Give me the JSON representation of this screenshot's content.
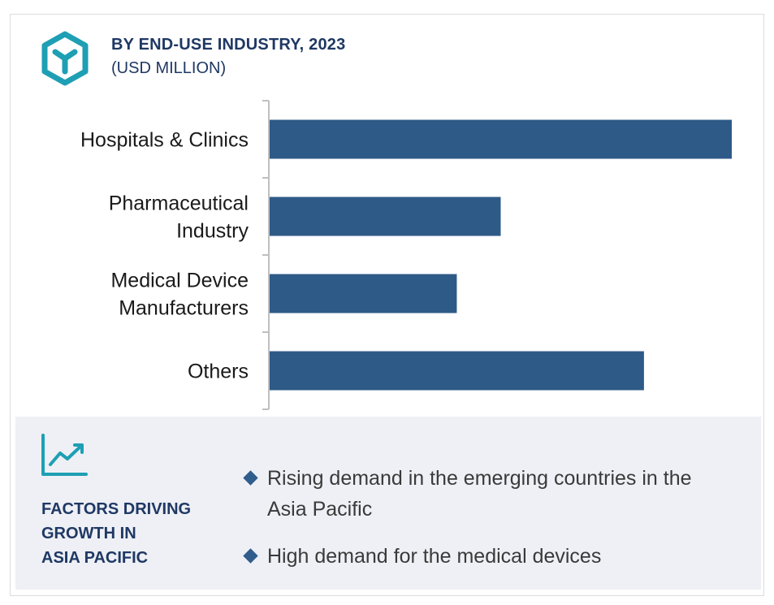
{
  "header": {
    "title": "BY END-USE INDUSTRY, 2023",
    "subtitle": "(USD MILLION)",
    "logo_icon": "hexagon-y-logo-icon"
  },
  "colors": {
    "bar": "#2e5a87",
    "accent": "#1e9fb4",
    "title": "#1f3864",
    "panel_bg": "#eef0f5",
    "axis": "#bfbfbf"
  },
  "chart_data": {
    "type": "bar",
    "orientation": "horizontal",
    "categories": [
      [
        "Hospitals & Clinics"
      ],
      [
        "Pharmaceutical",
        "Industry"
      ],
      [
        "Medical Device",
        "Manufacturers"
      ],
      [
        "Others"
      ]
    ],
    "values": [
      100,
      50,
      40.5,
      81
    ],
    "title": "BY END-USE INDUSTRY, 2023",
    "subtitle": "(USD MILLION)",
    "xlabel": "",
    "ylabel": "",
    "xlim": [
      0,
      100
    ],
    "grid": false,
    "legend": "none"
  },
  "factors": {
    "icon": "trend-line-icon",
    "title": "FACTORS DRIVING\nGROWTH IN\nASIA PACIFIC",
    "bullets": [
      "Rising demand in the emerging countries in the Asia Pacific",
      "High demand for the medical devices"
    ]
  }
}
